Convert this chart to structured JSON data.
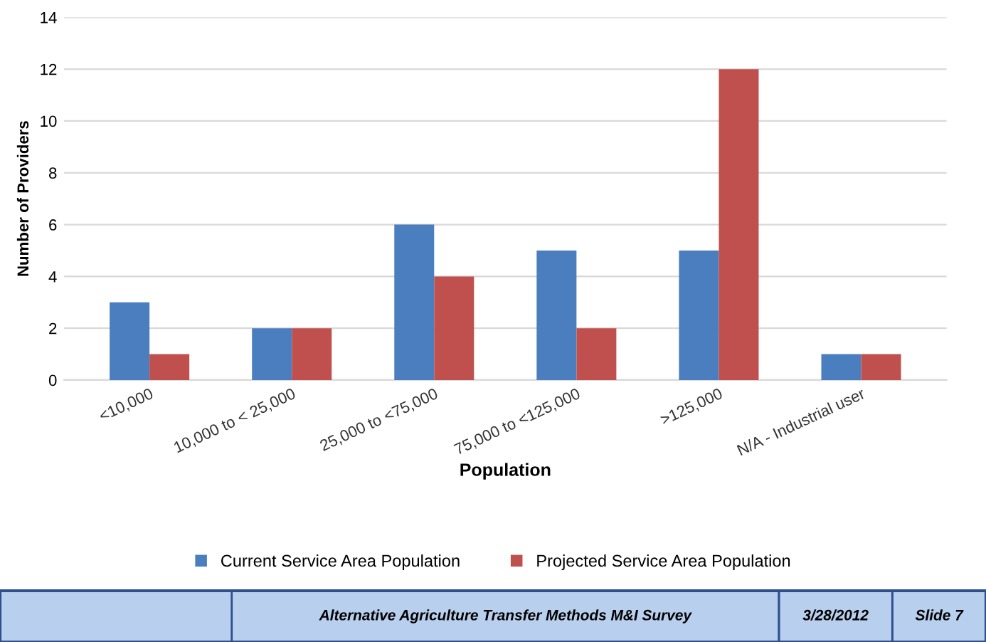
{
  "chart_data": {
    "type": "bar",
    "xlabel": "Population",
    "ylabel": "Number of Providers",
    "categories": [
      "<10,000",
      "10,000 to < 25,000",
      "25,000 to <75,000",
      "75,000 to <125,000",
      ">125,000",
      "N/A - Industrial user"
    ],
    "series": [
      {
        "name": "Current Service Area Population",
        "color": "#4a7ebf",
        "values": [
          3,
          2,
          6,
          5,
          5,
          1
        ]
      },
      {
        "name": "Projected Service Area Population",
        "color": "#c0504d",
        "values": [
          1,
          2,
          4,
          2,
          12,
          1
        ]
      }
    ],
    "ylim": [
      0,
      14
    ],
    "yticks": [
      0,
      2,
      4,
      6,
      8,
      10,
      12,
      14
    ],
    "grid": "y",
    "legend": "bottom",
    "annotations": [
      "Alternative Agriculture Transfer Methods M&I Survey",
      "3/28/2012",
      "Slide 7"
    ]
  }
}
